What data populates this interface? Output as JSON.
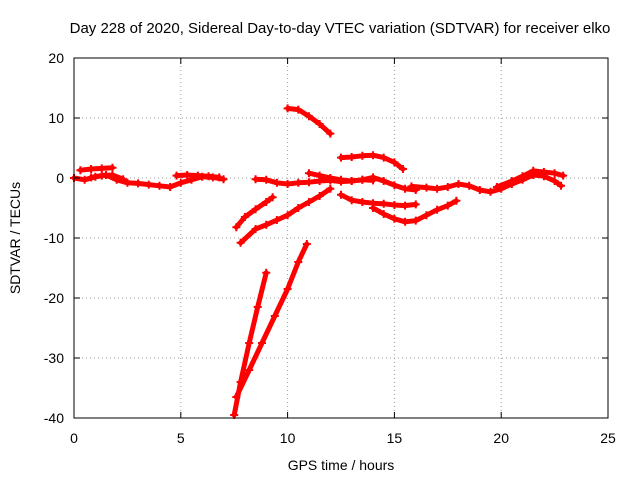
{
  "chart_data": {
    "type": "scatter",
    "title": "Day 228 of 2020, Sidereal Day-to-day VTEC variation (SDTVAR) for receiver elko",
    "xlabel": "GPS time / hours",
    "ylabel": "SDTVAR / TECUs",
    "xlim": [
      0,
      25
    ],
    "ylim": [
      -40,
      20
    ],
    "xticks": [
      0,
      5,
      10,
      15,
      20,
      25
    ],
    "yticks": [
      -40,
      -30,
      -20,
      -10,
      0,
      10,
      20
    ],
    "grid": true,
    "marker": "plus",
    "color": "#ff0000",
    "series": [
      {
        "name": "arc-1",
        "x": [
          0.0,
          0.5,
          1.0,
          1.5,
          2.0,
          2.5,
          3.0,
          3.5,
          4.0,
          4.5,
          5.0,
          5.5,
          6.0,
          6.5,
          7.0
        ],
        "y": [
          0.0,
          -0.3,
          0.2,
          0.5,
          -0.3,
          -0.8,
          -0.9,
          -1.1,
          -1.3,
          -1.5,
          -0.8,
          -0.3,
          0.2,
          0.1,
          -0.2
        ]
      },
      {
        "name": "arc-2",
        "x": [
          0.3,
          0.8,
          1.3,
          1.8
        ],
        "y": [
          1.3,
          1.5,
          1.6,
          1.7
        ]
      },
      {
        "name": "arc-3",
        "x": [
          0.8,
          1.3,
          1.8,
          2.3
        ],
        "y": [
          0.1,
          0.4,
          0.5,
          -0.2
        ]
      },
      {
        "name": "arc-4",
        "x": [
          4.8,
          5.3,
          5.8,
          6.3,
          6.8
        ],
        "y": [
          0.4,
          0.5,
          0.4,
          0.3,
          0.1
        ]
      },
      {
        "name": "arc-5",
        "x": [
          8.5,
          9.0,
          9.5,
          10.0,
          10.5,
          11.0,
          11.5,
          12.0,
          12.5,
          13.0,
          13.5,
          14.0
        ],
        "y": [
          -0.2,
          -0.3,
          -0.8,
          -1.0,
          -0.8,
          -0.7,
          -0.5,
          -0.4,
          -0.6,
          -0.5,
          -0.3,
          -0.4
        ]
      },
      {
        "name": "arc-6",
        "x": [
          11.0,
          11.5,
          12.0,
          12.5,
          13.0,
          13.5,
          14.0,
          14.5,
          15.0,
          15.5,
          16.0
        ],
        "y": [
          0.8,
          0.4,
          0.0,
          -0.3,
          -0.5,
          -0.3,
          0.1,
          -0.5,
          -1.2,
          -1.8,
          -2.0
        ]
      },
      {
        "name": "arc-7",
        "x": [
          7.6,
          8.0,
          8.5,
          9.0,
          9.3
        ],
        "y": [
          -8.2,
          -6.5,
          -5.2,
          -4.0,
          -3.2
        ]
      },
      {
        "name": "arc-8",
        "x": [
          7.8,
          8.5,
          9.0,
          9.5,
          10.0,
          10.5,
          11.0,
          11.5,
          12.0
        ],
        "y": [
          -10.8,
          -8.5,
          -7.8,
          -7.0,
          -6.2,
          -5.0,
          -4.0,
          -3.0,
          -1.8
        ]
      },
      {
        "name": "arc-9",
        "x": [
          10.0,
          10.5,
          11.0,
          11.5,
          12.0
        ],
        "y": [
          11.6,
          11.4,
          10.3,
          9.0,
          7.4
        ]
      },
      {
        "name": "arc-10",
        "x": [
          12.5,
          13.0,
          13.5,
          14.0,
          14.5,
          15.0,
          15.4
        ],
        "y": [
          3.4,
          3.5,
          3.7,
          3.8,
          3.4,
          2.6,
          1.5
        ]
      },
      {
        "name": "arc-11",
        "x": [
          12.5,
          13.0,
          13.5,
          14.0,
          14.5,
          15.0,
          15.5,
          16.0
        ],
        "y": [
          -2.8,
          -3.7,
          -4.0,
          -4.2,
          -4.3,
          -4.5,
          -4.6,
          -4.4
        ]
      },
      {
        "name": "arc-12",
        "x": [
          14.0,
          14.5,
          15.0,
          15.5,
          16.0,
          16.5,
          17.0,
          17.5,
          17.9
        ],
        "y": [
          -5.0,
          -6.0,
          -6.8,
          -7.3,
          -7.1,
          -6.2,
          -5.3,
          -4.6,
          -3.8
        ]
      },
      {
        "name": "arc-13",
        "x": [
          15.8,
          16.5,
          17.0,
          17.5,
          18.0,
          18.5,
          19.0,
          19.5,
          20.0,
          20.5,
          21.0,
          21.5,
          22.0,
          22.5,
          22.8
        ],
        "y": [
          -1.4,
          -1.6,
          -1.8,
          -1.5,
          -1.0,
          -1.3,
          -2.0,
          -2.3,
          -1.8,
          -1.0,
          -0.3,
          0.5,
          0.3,
          -0.5,
          -1.3
        ]
      },
      {
        "name": "arc-14",
        "x": [
          19.8,
          20.5,
          21.0,
          21.5,
          22.0,
          22.5,
          22.9
        ],
        "y": [
          -1.5,
          -0.5,
          0.3,
          1.2,
          1.0,
          0.8,
          0.4
        ]
      },
      {
        "name": "arc-15",
        "x": [
          7.5,
          7.8,
          8.2,
          8.6,
          9.0
        ],
        "y": [
          -39.5,
          -34.0,
          -27.5,
          -21.5,
          -15.8
        ]
      },
      {
        "name": "arc-16",
        "x": [
          7.6,
          8.2,
          8.8,
          9.4,
          10.0,
          10.5,
          10.9
        ],
        "y": [
          -36.5,
          -32.0,
          -27.5,
          -23.0,
          -18.5,
          -14.0,
          -11.0
        ]
      }
    ]
  }
}
